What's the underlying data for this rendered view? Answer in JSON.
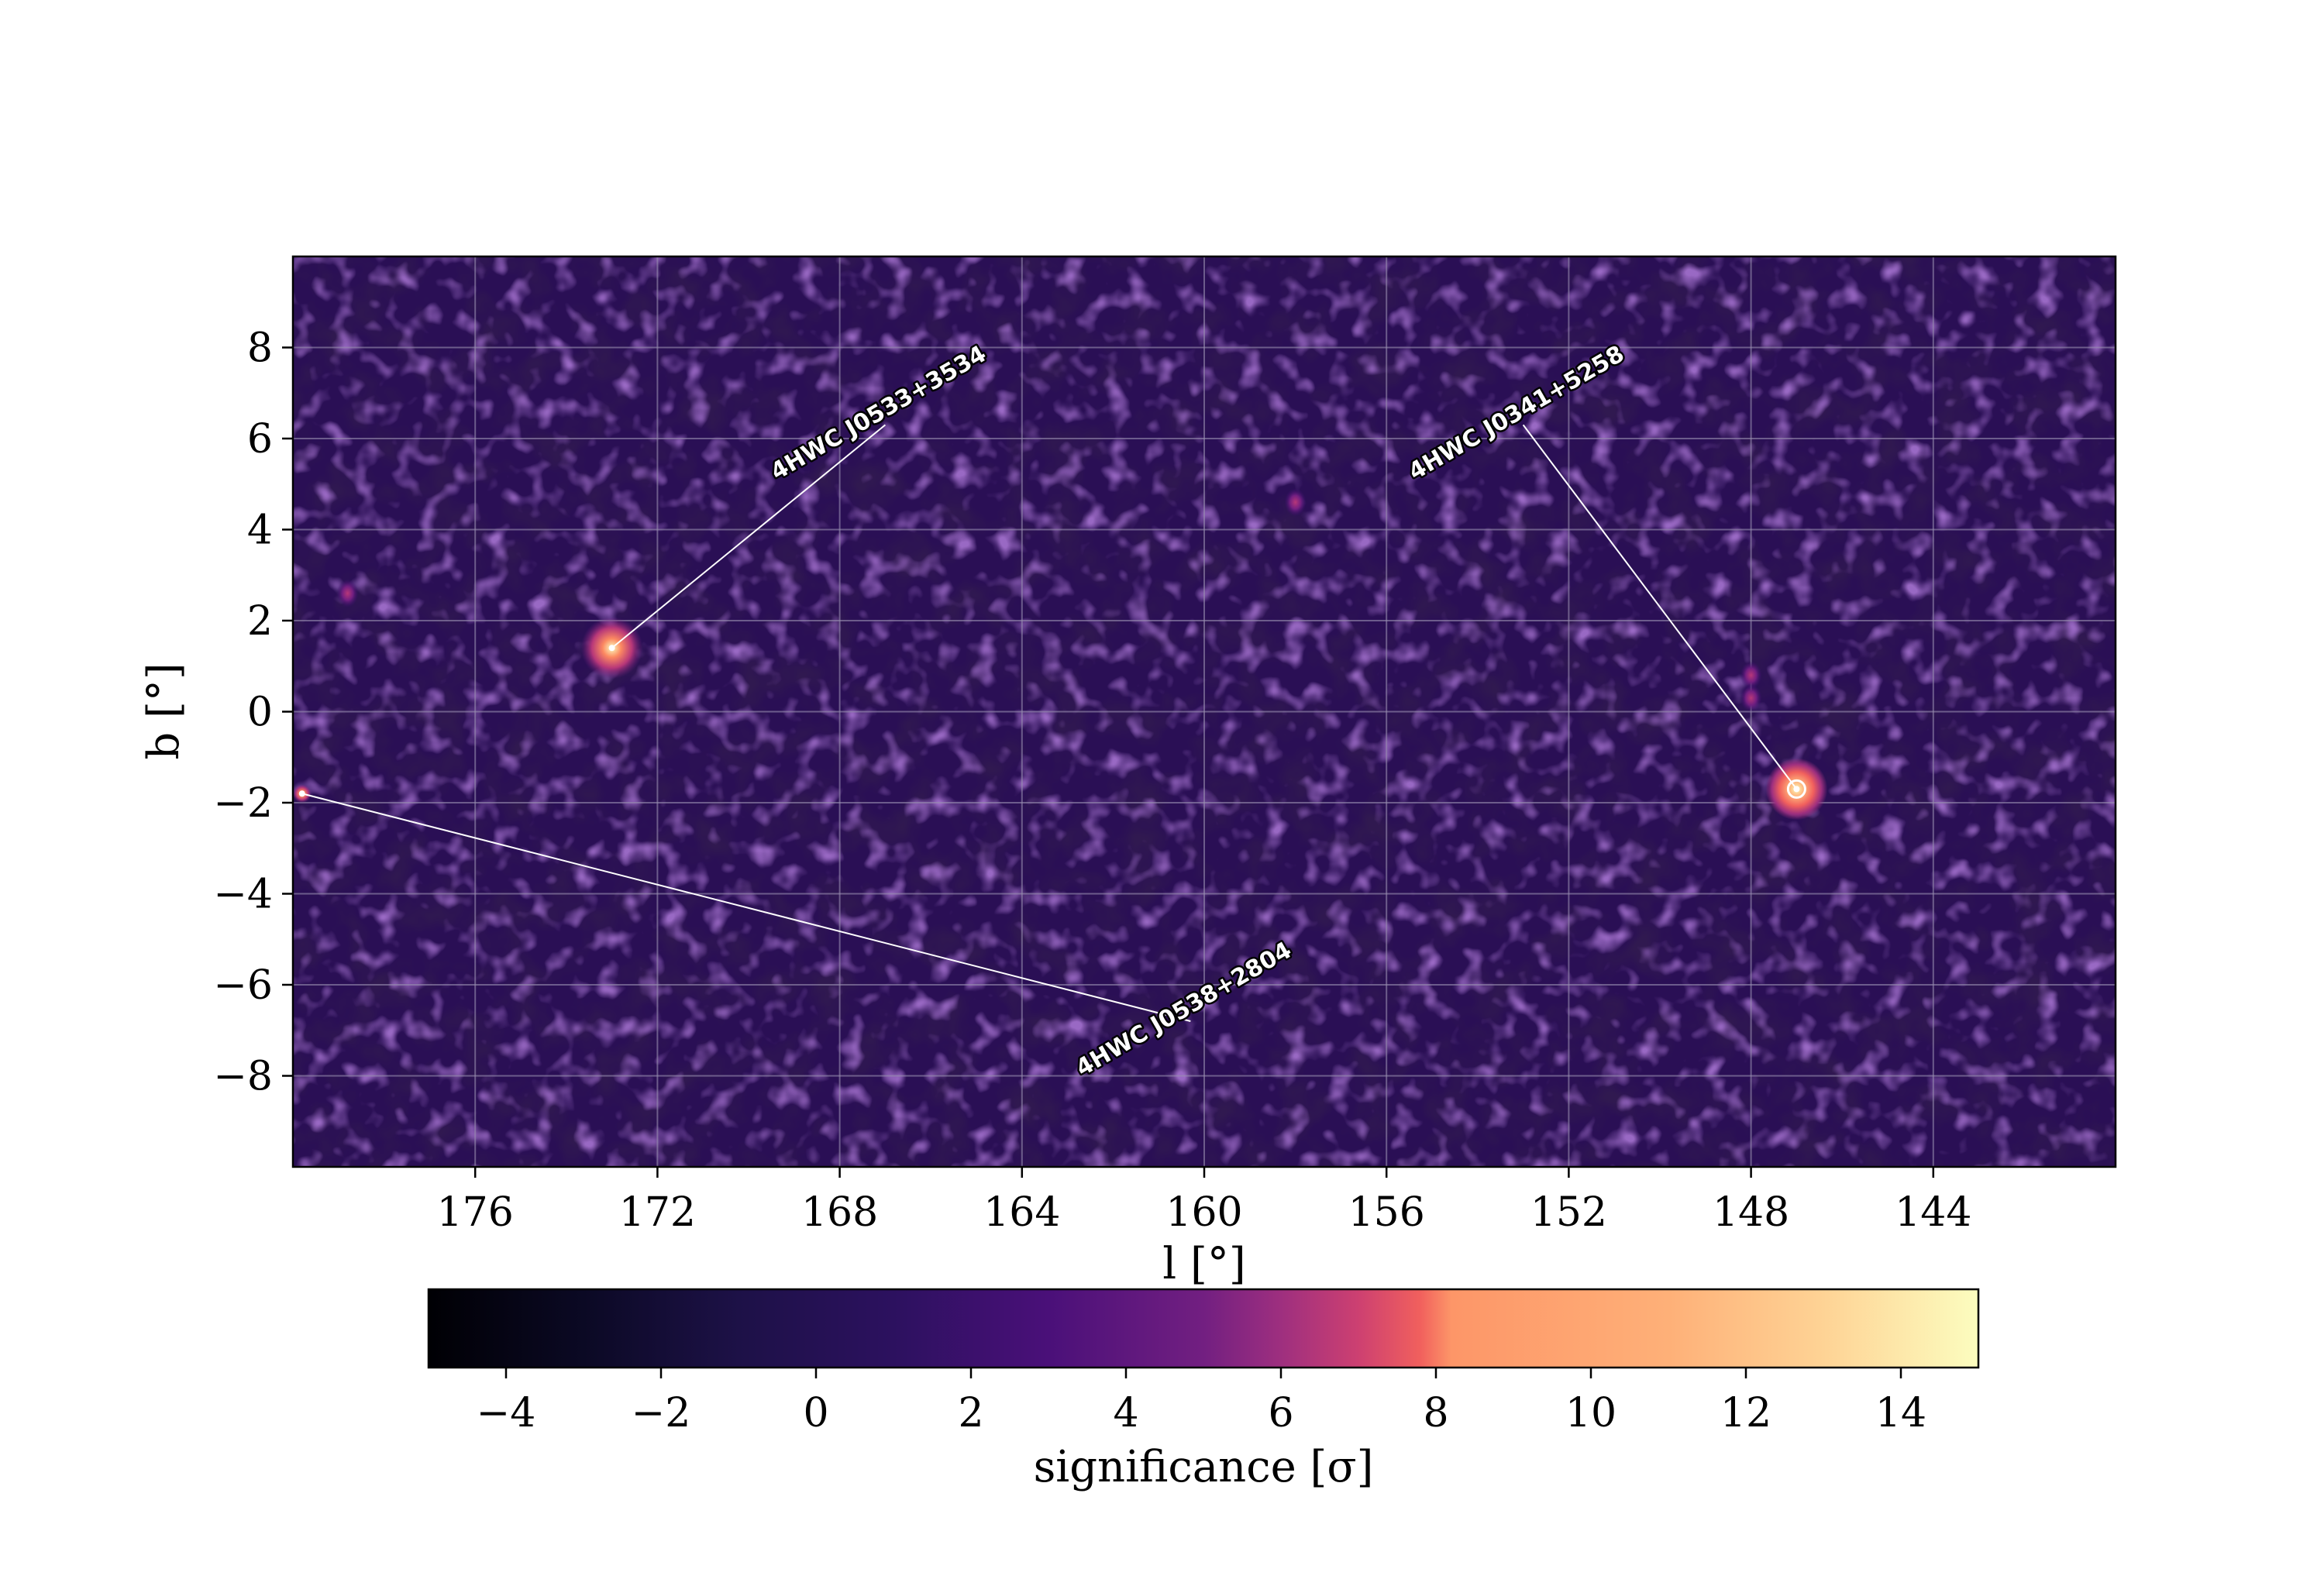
{
  "chart_data": {
    "type": "heatmap",
    "xlabel": "l [°]",
    "ylabel": "b [°]",
    "xlim": [
      180,
      140
    ],
    "ylim": [
      -10,
      10
    ],
    "x_ticks": [
      176,
      172,
      168,
      164,
      160,
      156,
      152,
      148,
      144
    ],
    "y_ticks": [
      8,
      6,
      4,
      2,
      0,
      -2,
      -4,
      -6,
      -8
    ],
    "x_tick_labels": [
      "176",
      "172",
      "168",
      "164",
      "160",
      "156",
      "152",
      "148",
      "144"
    ],
    "y_tick_labels": [
      "8",
      "6",
      "4",
      "2",
      "0",
      "−2",
      "−4",
      "−6",
      "−8"
    ],
    "grid": true,
    "colormap": "magma",
    "colorbar": {
      "label": "significance [σ]",
      "range": [
        -5,
        15
      ],
      "ticks": [
        -4,
        -2,
        0,
        2,
        4,
        6,
        8,
        10,
        12,
        14
      ],
      "tick_labels": [
        "−4",
        "−2",
        "0",
        "2",
        "4",
        "6",
        "8",
        "10",
        "12",
        "14"
      ]
    },
    "sources": [
      {
        "name": "4HWC J0533+3534",
        "l": 173.0,
        "b": 1.4,
        "label_l": 167.0,
        "label_b": 6.3,
        "significance": 11
      },
      {
        "name": "4HWC J0341+5258",
        "l": 147.0,
        "b": -1.7,
        "label_l": 153.0,
        "label_b": 6.3,
        "significance": 15
      },
      {
        "name": "4HWC J0538+2804",
        "l": 179.8,
        "b": -1.8,
        "label_l": 160.3,
        "label_b": -6.8,
        "significance": 6
      }
    ],
    "faint_spots": [
      {
        "l": 178.8,
        "b": 2.6,
        "significance": 4
      },
      {
        "l": 158.0,
        "b": 4.6,
        "significance": 4
      },
      {
        "l": 148.0,
        "b": 0.8,
        "significance": 4
      },
      {
        "l": 148.0,
        "b": 0.3,
        "significance": 4
      }
    ]
  }
}
